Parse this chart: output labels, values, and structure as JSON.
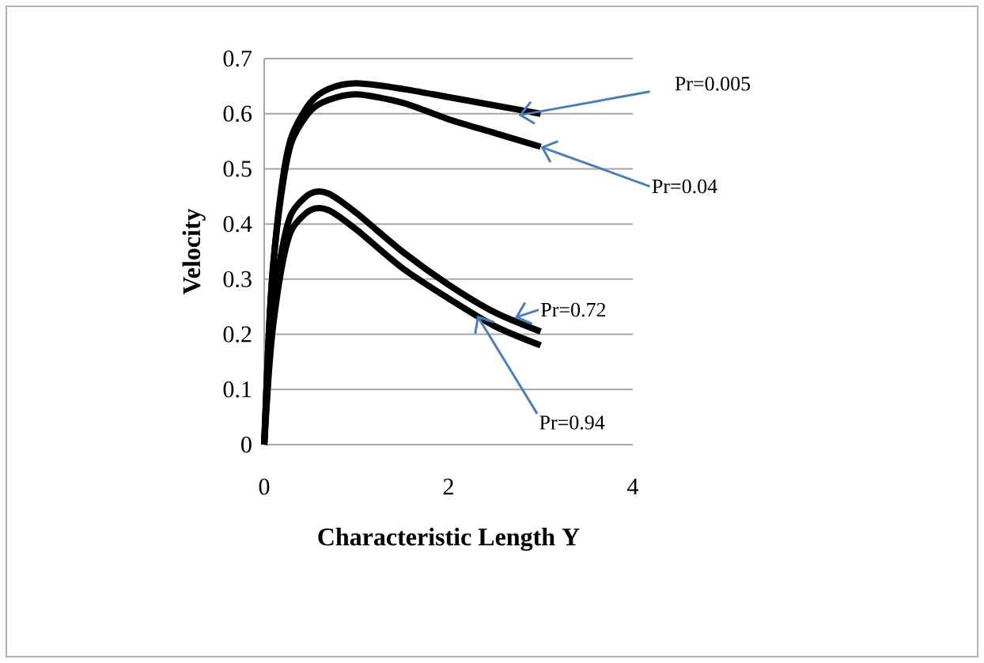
{
  "chart_data": {
    "type": "line",
    "xlabel": "Characteristic Length Y",
    "ylabel": "Velocity",
    "xlim": [
      0,
      4
    ],
    "ylim": [
      0,
      0.7
    ],
    "xticks": [
      0,
      2,
      4
    ],
    "yticks": [
      0,
      0.1,
      0.2,
      0.3,
      0.4,
      0.5,
      0.6,
      0.7
    ],
    "grid": "y",
    "marker": "none",
    "x": [
      0,
      0.05,
      0.1,
      0.2,
      0.3,
      0.5,
      0.7,
      1.0,
      1.5,
      2,
      2.5,
      3
    ],
    "series": [
      {
        "color": "#000000",
        "values": [
          0,
          0.2,
          0.33,
          0.48,
          0.56,
          0.62,
          0.645,
          0.655,
          0.645,
          0.63,
          0.615,
          0.6
        ]
      },
      {
        "color": "#000000",
        "values": [
          0,
          0.2,
          0.33,
          0.47,
          0.55,
          0.605,
          0.625,
          0.635,
          0.62,
          0.59,
          0.565,
          0.54
        ]
      },
      {
        "color": "#000000",
        "values": [
          0,
          0.15,
          0.25,
          0.36,
          0.42,
          0.455,
          0.455,
          0.42,
          0.35,
          0.29,
          0.24,
          0.205
        ]
      },
      {
        "color": "#000000",
        "values": [
          0,
          0.13,
          0.22,
          0.33,
          0.39,
          0.425,
          0.425,
          0.39,
          0.32,
          0.265,
          0.215,
          0.18
        ]
      }
    ],
    "annotations": [
      {
        "text": "Pr=0.005",
        "x": 2.76,
        "y": 0.597
      },
      {
        "text": "Pr=0.04",
        "x": 3,
        "y": 0.54
      },
      {
        "text": "Pr=0.72",
        "x": 2.72,
        "y": 0.23
      },
      {
        "text": "Pr=0.94",
        "x": 2.31,
        "y": 0.234
      }
    ]
  }
}
